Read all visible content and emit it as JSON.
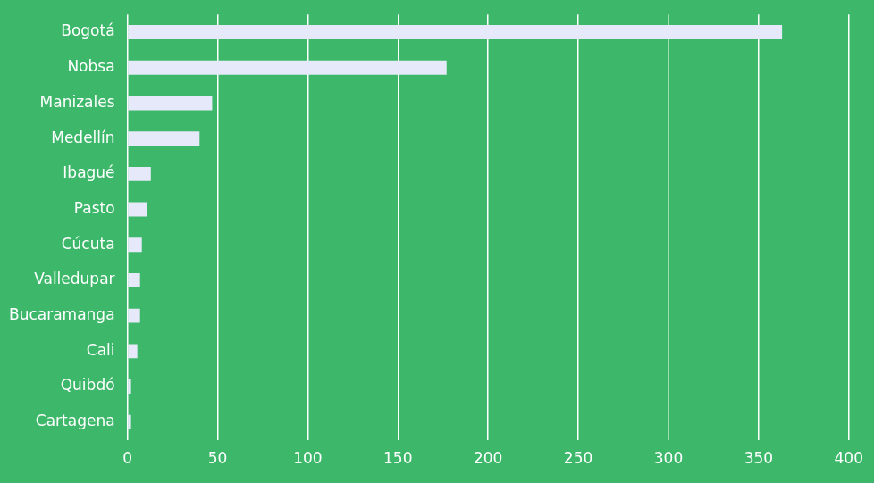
{
  "chart_data": {
    "type": "bar",
    "orientation": "horizontal",
    "categories": [
      "Bogotá",
      "Nobsa",
      "Manizales",
      "Medellín",
      "Ibagué",
      "Pasto",
      "Cúcuta",
      "Valledupar",
      "Bucaramanga",
      "Cali",
      "Quibdó",
      "Cartagena"
    ],
    "values": [
      363,
      177,
      47,
      40,
      13,
      11,
      8,
      7,
      7,
      5.5,
      2,
      2
    ],
    "color": "#e6e9fa",
    "xlim": [
      0,
      400
    ],
    "xticks": [
      0,
      50,
      100,
      150,
      200,
      250,
      300,
      350,
      400
    ],
    "grid": true
  }
}
